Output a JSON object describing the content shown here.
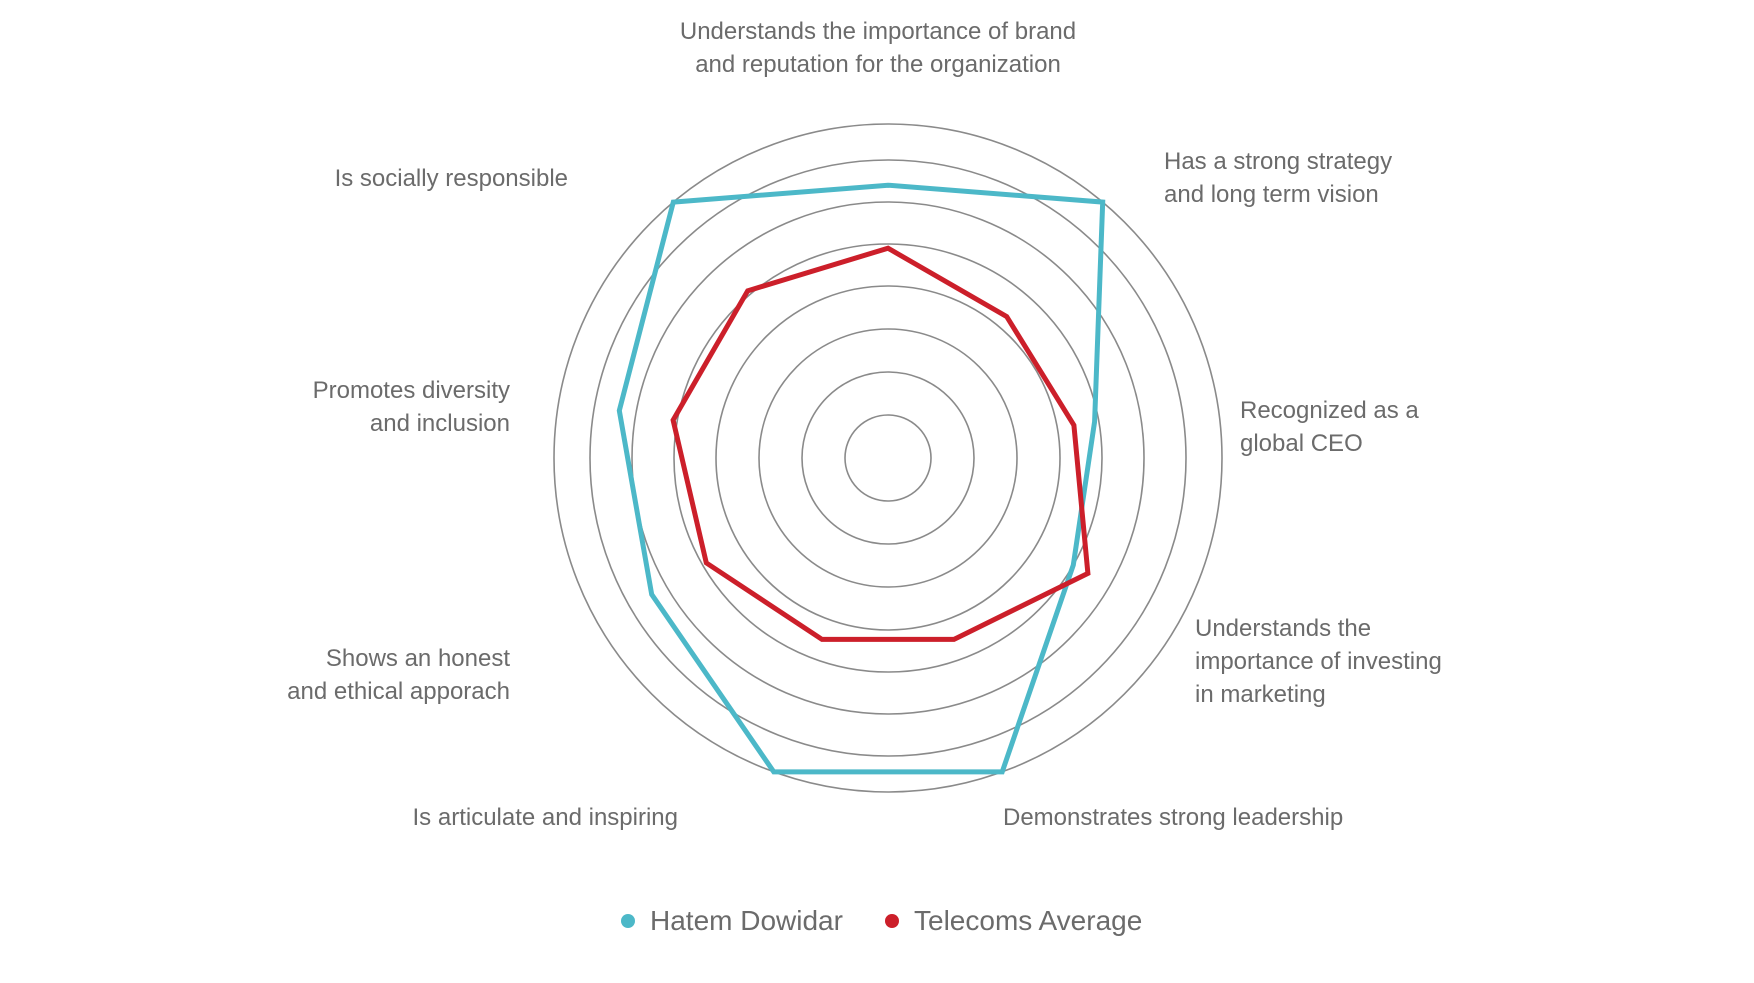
{
  "chart_data": {
    "type": "radar",
    "title": "",
    "axes": [
      {
        "lines": [
          "Understands the importance of brand",
          "and reputation for the organization"
        ]
      },
      {
        "lines": [
          "Has a strong strategy",
          "and long term vision"
        ]
      },
      {
        "lines": [
          "Recognized as a",
          "global CEO"
        ]
      },
      {
        "lines": [
          "Understands the",
          "importance of investing",
          "in marketing"
        ]
      },
      {
        "lines": [
          "Demonstrates strong leadership"
        ]
      },
      {
        "lines": [
          "Is articulate and inspiring"
        ]
      },
      {
        "lines": [
          "Shows an honest",
          "and ethical apporach"
        ]
      },
      {
        "lines": [
          "Promotes diversity",
          "and inclusion"
        ]
      },
      {
        "lines": [
          "Is socially responsible"
        ]
      }
    ],
    "rings": 8,
    "grid": true,
    "legend_position": "bottom-center",
    "series": [
      {
        "name": "Hatem Dowidar",
        "color": "#4cb8c8",
        "values": [
          6.4,
          8.0,
          4.9,
          5.0,
          8.0,
          8.0,
          6.4,
          6.4,
          8.0
        ]
      },
      {
        "name": "Telecoms Average",
        "color": "#cc1f2a",
        "values": [
          4.9,
          4.3,
          4.4,
          5.4,
          4.5,
          4.5,
          4.9,
          5.1,
          5.1
        ]
      }
    ]
  }
}
